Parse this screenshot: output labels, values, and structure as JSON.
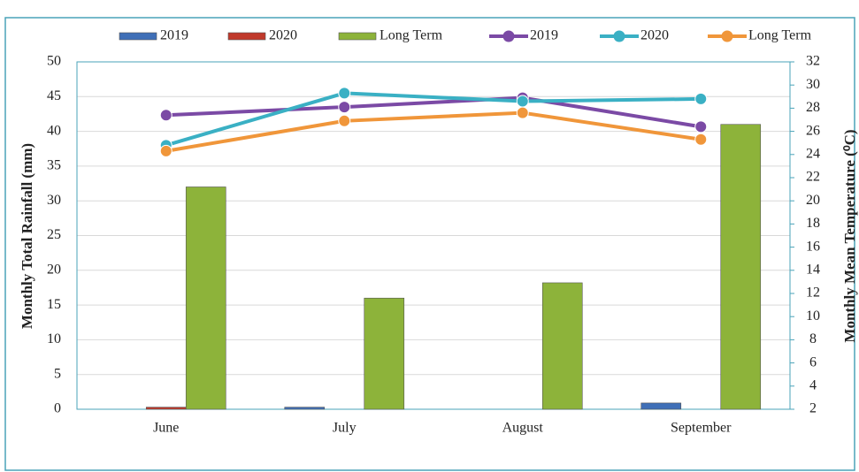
{
  "chart_data": {
    "type": "bar-line",
    "categories": [
      "June",
      "July",
      "August",
      "September"
    ],
    "series": [
      {
        "name": "2019",
        "type": "bar",
        "color": "#3f6fb7",
        "values": [
          0,
          0.3,
          0,
          0.9
        ]
      },
      {
        "name": "2020",
        "type": "bar",
        "color": "#c0392b",
        "values": [
          0.3,
          0,
          0,
          0
        ]
      },
      {
        "name": "Long Term",
        "type": "bar",
        "color": "#8db33a",
        "values": [
          32,
          16,
          18.2,
          41
        ]
      },
      {
        "name": "2019",
        "type": "line",
        "axis": "y2",
        "color": "#7b4aa5",
        "values": [
          27.4,
          28.1,
          28.9,
          26.4
        ]
      },
      {
        "name": "2020",
        "type": "line",
        "axis": "y2",
        "color": "#3ab0c4",
        "values": [
          24.8,
          29.3,
          28.6,
          28.8
        ]
      },
      {
        "name": "Long Term",
        "type": "line",
        "axis": "y2",
        "color": "#f0963a",
        "values": [
          24.3,
          26.9,
          27.6,
          25.3
        ]
      }
    ],
    "ylabel": "Monthly Total Rainfall (mm)",
    "y2label": "Monthly Mean Temperature (⁰C)",
    "ylim": [
      0,
      50
    ],
    "yticks": [
      0,
      5,
      10,
      15,
      20,
      25,
      30,
      35,
      40,
      45,
      50
    ],
    "y2lim": [
      2,
      32
    ],
    "y2ticks": [
      2,
      4,
      6,
      8,
      10,
      12,
      14,
      16,
      18,
      20,
      22,
      24,
      26,
      28,
      30,
      32
    ],
    "grid": true,
    "legend": "top"
  }
}
